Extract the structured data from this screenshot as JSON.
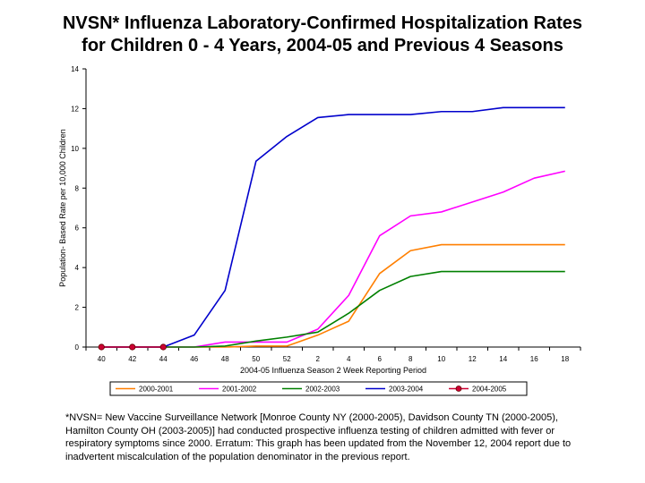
{
  "title_lines": [
    "NVSN* Influenza Laboratory-Confirmed Hospitalization Rates",
    "for Children 0 - 4 Years, 2004-05 and Previous 4 Seasons"
  ],
  "footnote": "*NVSN= New Vaccine Surveillance Network [Monroe County NY (2000-2005), Davidson County TN (2000-2005), Hamilton County OH (2003-2005)] had conducted prospective influenza testing of children admitted with fever or respiratory symptoms since 2000. Erratum:  This graph has been updated from the  November 12, 2004 report due to inadvertent miscalculation of the population denominator in the previous report.",
  "chart_data": {
    "type": "line",
    "xlabel": "2004-05 Influenza Season 2 Week Reporting Period",
    "ylabel": "Population- Based Rate per 10,000 Children",
    "ylim": [
      0,
      14
    ],
    "yticks": [
      0,
      2,
      4,
      6,
      8,
      10,
      12,
      14
    ],
    "categories": [
      "40",
      "42",
      "44",
      "46",
      "48",
      "50",
      "52",
      "2",
      "4",
      "6",
      "8",
      "10",
      "12",
      "14",
      "16",
      "18"
    ],
    "grid": false,
    "legend_position": "bottom",
    "series": [
      {
        "name": "2000-2001",
        "color": "#ff7f00",
        "marker": "none",
        "values": [
          0,
          0,
          0,
          0,
          0,
          0.05,
          0.05,
          0.6,
          1.3,
          3.7,
          4.85,
          5.15,
          5.15,
          5.15,
          5.15,
          5.15
        ]
      },
      {
        "name": "2001-2002",
        "color": "#ff00ff",
        "marker": "none",
        "values": [
          0,
          0,
          0,
          0,
          0.25,
          0.25,
          0.25,
          0.9,
          2.6,
          5.6,
          6.6,
          6.8,
          7.3,
          7.8,
          8.5,
          8.85
        ]
      },
      {
        "name": "2002-2003",
        "color": "#008000",
        "marker": "none",
        "values": [
          0,
          0,
          0,
          0,
          0.05,
          0.3,
          0.5,
          0.75,
          1.7,
          2.85,
          3.55,
          3.8,
          3.8,
          3.8,
          3.8,
          3.8
        ]
      },
      {
        "name": "2003-2004",
        "color": "#0000cc",
        "marker": "none",
        "values": [
          0,
          0,
          0,
          0.6,
          2.85,
          9.35,
          10.6,
          11.55,
          11.7,
          11.7,
          11.7,
          11.85,
          11.85,
          12.05,
          12.05,
          12.05
        ]
      },
      {
        "name": "2004-2005",
        "color": "#cc0033",
        "marker": "circle",
        "values": [
          0,
          0,
          0,
          null,
          null,
          null,
          null,
          null,
          null,
          null,
          null,
          null,
          null,
          null,
          null,
          null
        ]
      }
    ]
  }
}
